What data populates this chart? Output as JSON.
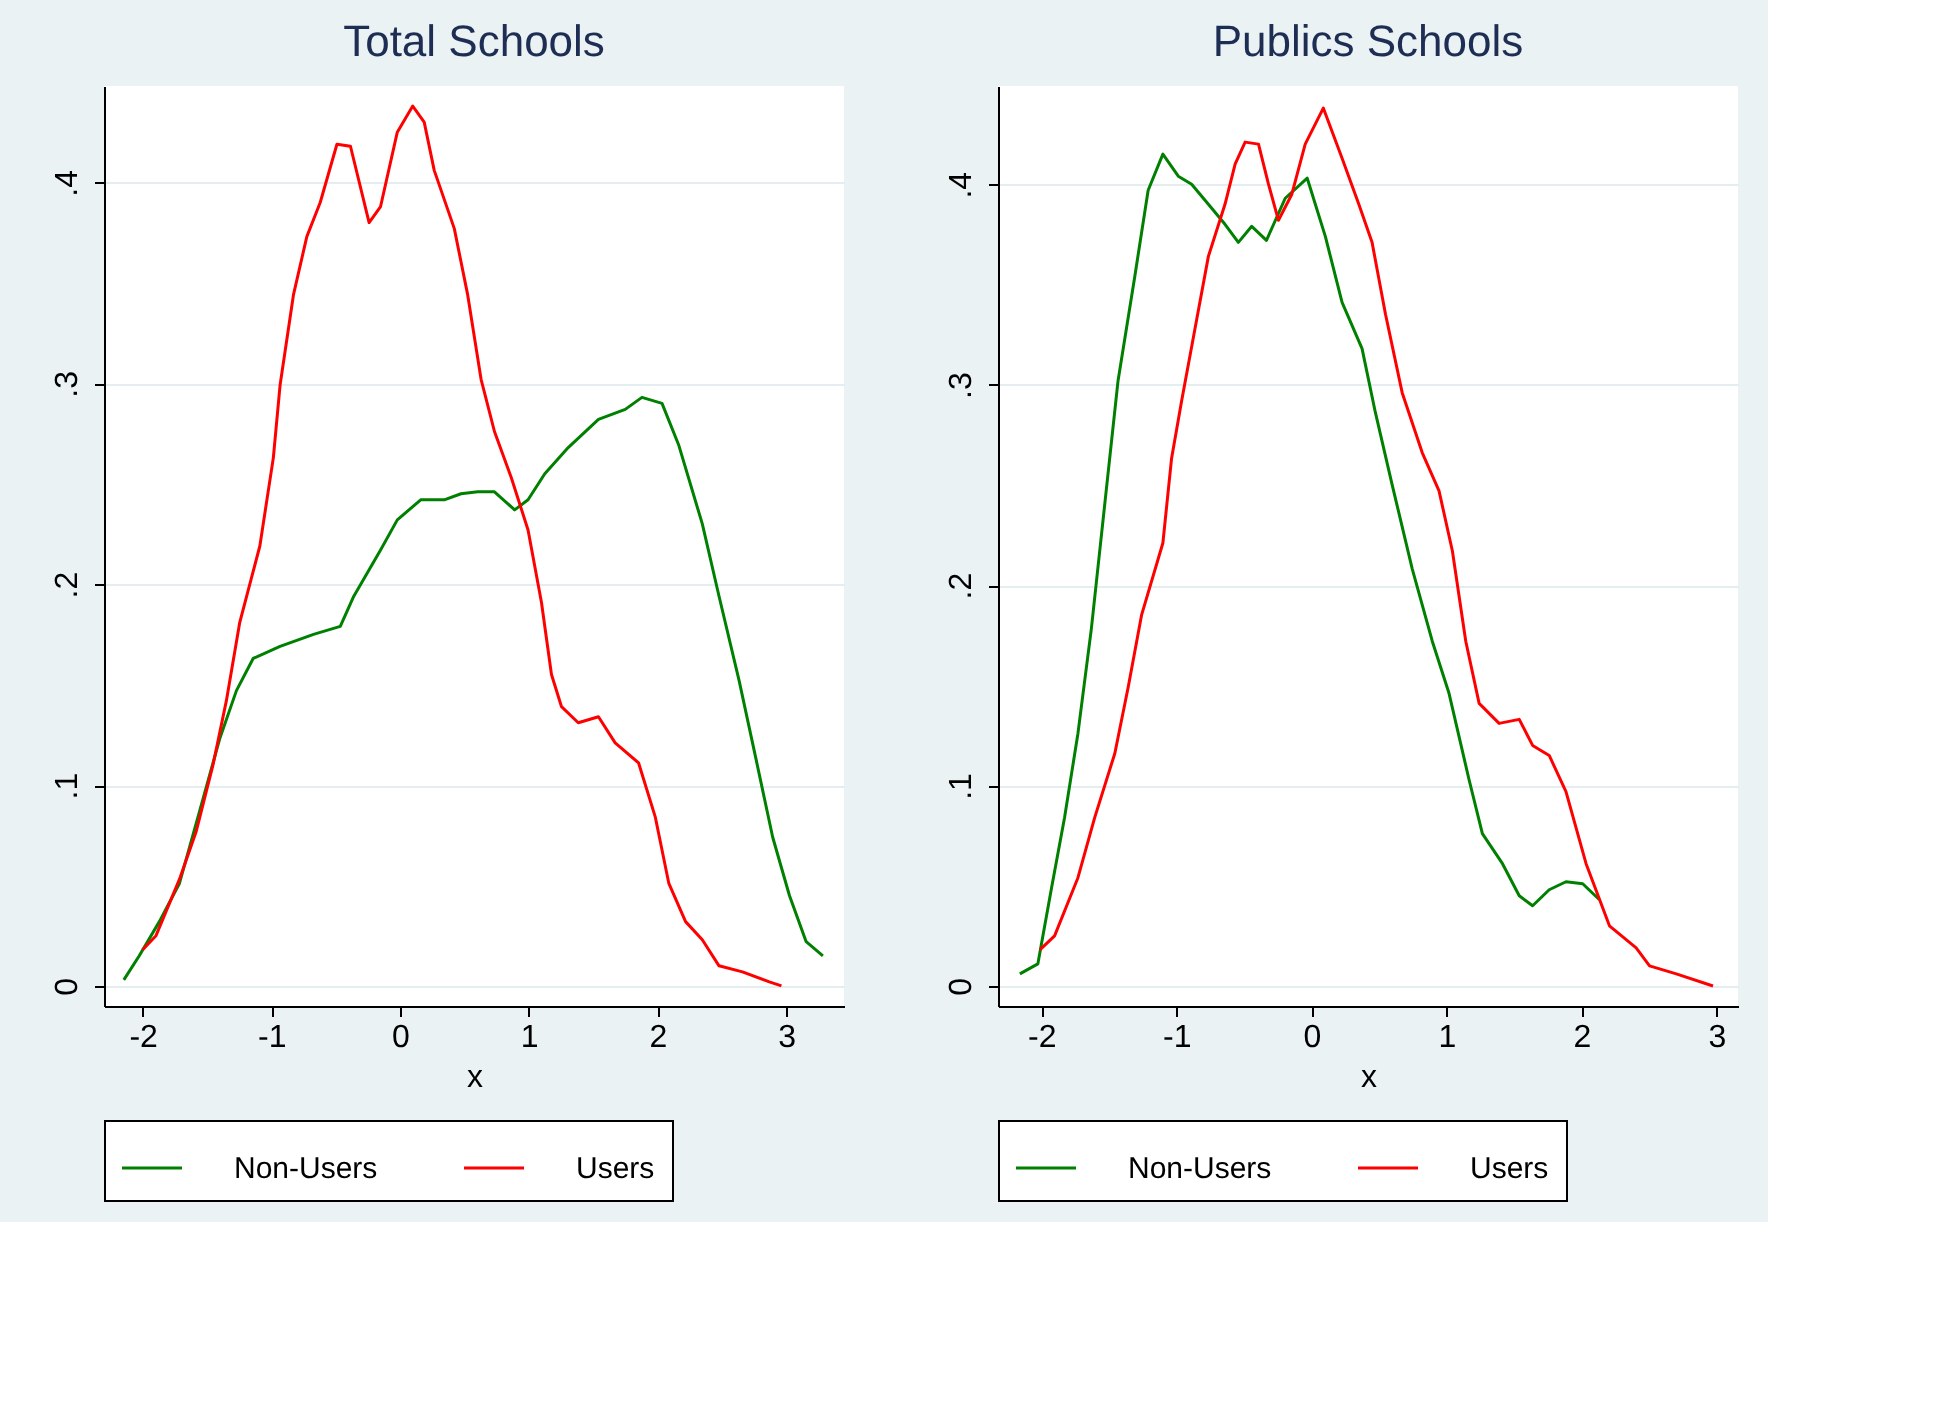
{
  "chart_data": [
    {
      "type": "line",
      "title": "Total Schools",
      "xlabel": "x",
      "xlim": [
        -2.3,
        3.45
      ],
      "ylim": [
        -0.01,
        0.448
      ],
      "xticks": [
        -2,
        -1,
        0,
        1,
        2,
        3
      ],
      "yticks": [
        {
          "value": 0,
          "label": "0"
        },
        {
          "value": 0.1,
          "label": ".1"
        },
        {
          "value": 0.2,
          "label": ".2"
        },
        {
          "value": 0.3,
          "label": ".3"
        },
        {
          "value": 0.4,
          "label": ".4"
        }
      ],
      "grid": "y",
      "legend": "bottom",
      "line_style": "solid",
      "marker": "none",
      "series": [
        {
          "name": "Non-Users",
          "color": "#008000",
          "x": [
            -2.146,
            -2.026,
            -1.87,
            -1.714,
            -1.557,
            -1.401,
            -1.271,
            -1.141,
            -0.932,
            -0.672,
            -0.464,
            -0.359,
            -0.151,
            -0.021,
            0.161,
            0.344,
            0.474,
            0.604,
            0.734,
            0.891,
            0.995,
            1.125,
            1.307,
            1.542,
            1.75,
            1.88,
            2.036,
            2.167,
            2.349,
            2.479,
            2.635,
            2.766,
            2.896,
            3.026,
            3.156,
            3.286
          ],
          "values": [
            0.003,
            0.015,
            0.032,
            0.051,
            0.087,
            0.123,
            0.147,
            0.163,
            0.169,
            0.175,
            0.179,
            0.194,
            0.217,
            0.232,
            0.242,
            0.242,
            0.245,
            0.246,
            0.246,
            0.237,
            0.242,
            0.255,
            0.268,
            0.282,
            0.287,
            0.293,
            0.29,
            0.269,
            0.23,
            0.194,
            0.152,
            0.113,
            0.074,
            0.045,
            0.022,
            0.015
          ]
        },
        {
          "name": "Users",
          "color": "#ff0000",
          "x": [
            -2.0,
            -1.896,
            -1.714,
            -1.583,
            -1.453,
            -1.349,
            -1.245,
            -1.089,
            -0.984,
            -0.932,
            -0.828,
            -0.724,
            -0.62,
            -0.49,
            -0.385,
            -0.24,
            -0.151,
            -0.021,
            0.099,
            0.188,
            0.266,
            0.422,
            0.526,
            0.63,
            0.734,
            0.865,
            0.995,
            1.099,
            1.177,
            1.255,
            1.385,
            1.542,
            1.672,
            1.854,
            1.984,
            2.089,
            2.219,
            2.349,
            2.479,
            2.661,
            2.87,
            2.964
          ],
          "values": [
            0.018,
            0.025,
            0.053,
            0.077,
            0.11,
            0.142,
            0.181,
            0.219,
            0.263,
            0.299,
            0.344,
            0.373,
            0.39,
            0.419,
            0.418,
            0.38,
            0.388,
            0.425,
            0.438,
            0.43,
            0.406,
            0.377,
            0.344,
            0.302,
            0.276,
            0.253,
            0.227,
            0.191,
            0.155,
            0.139,
            0.131,
            0.134,
            0.121,
            0.111,
            0.084,
            0.051,
            0.032,
            0.023,
            0.01,
            0.007,
            0.002,
            0.0
          ]
        }
      ]
    },
    {
      "type": "line",
      "title": "Publics Schools",
      "xlabel": "x",
      "xlim": [
        -2.32,
        3.16
      ],
      "ylim": [
        -0.01,
        0.449
      ],
      "xticks": [
        -2,
        -1,
        0,
        1,
        2,
        3
      ],
      "yticks": [
        {
          "value": 0,
          "label": "0"
        },
        {
          "value": 0.1,
          "label": ".1"
        },
        {
          "value": 0.2,
          "label": ".2"
        },
        {
          "value": 0.3,
          "label": ".3"
        },
        {
          "value": 0.4,
          "label": ".4"
        }
      ],
      "grid": "y",
      "legend": "bottom",
      "line_style": "solid",
      "marker": "none",
      "series": [
        {
          "name": "Non-Users",
          "color": "#008000",
          "x": [
            -2.158,
            -2.025,
            -1.926,
            -1.827,
            -1.728,
            -1.629,
            -1.53,
            -1.431,
            -1.307,
            -1.208,
            -1.099,
            -0.985,
            -0.886,
            -0.762,
            -0.639,
            -0.54,
            -0.441,
            -0.332,
            -0.193,
            -0.03,
            0.104,
            0.228,
            0.376,
            0.475,
            0.599,
            0.748,
            0.896,
            1.02,
            1.168,
            1.267,
            1.416,
            1.54,
            1.639,
            1.762,
            1.886,
            2.01,
            2.134
          ],
          "values": [
            0.006,
            0.011,
            0.048,
            0.084,
            0.126,
            0.178,
            0.24,
            0.302,
            0.354,
            0.397,
            0.415,
            0.404,
            0.4,
            0.39,
            0.38,
            0.371,
            0.379,
            0.372,
            0.393,
            0.403,
            0.374,
            0.341,
            0.318,
            0.286,
            0.25,
            0.208,
            0.172,
            0.146,
            0.103,
            0.076,
            0.061,
            0.045,
            0.04,
            0.048,
            0.052,
            0.051,
            0.043
          ]
        },
        {
          "name": "Users",
          "color": "#ff0000",
          "x": [
            -2.01,
            -1.901,
            -1.728,
            -1.604,
            -1.455,
            -1.356,
            -1.257,
            -1.099,
            -1.035,
            -0.96,
            -0.861,
            -0.762,
            -0.639,
            -0.564,
            -0.49,
            -0.391,
            -0.317,
            -0.243,
            -0.144,
            -0.045,
            0.089,
            0.228,
            0.352,
            0.45,
            0.55,
            0.673,
            0.822,
            0.946,
            1.045,
            1.144,
            1.243,
            1.391,
            1.54,
            1.639,
            1.762,
            1.886,
            2.035,
            2.208,
            2.406,
            2.505,
            2.703,
            2.975
          ],
          "values": [
            0.018,
            0.025,
            0.054,
            0.084,
            0.116,
            0.149,
            0.185,
            0.221,
            0.263,
            0.292,
            0.328,
            0.364,
            0.39,
            0.41,
            0.421,
            0.42,
            0.4,
            0.382,
            0.395,
            0.42,
            0.438,
            0.413,
            0.39,
            0.371,
            0.335,
            0.296,
            0.266,
            0.247,
            0.217,
            0.172,
            0.141,
            0.131,
            0.133,
            0.12,
            0.115,
            0.097,
            0.061,
            0.03,
            0.019,
            0.01,
            0.006,
            0.0
          ]
        }
      ]
    }
  ]
}
